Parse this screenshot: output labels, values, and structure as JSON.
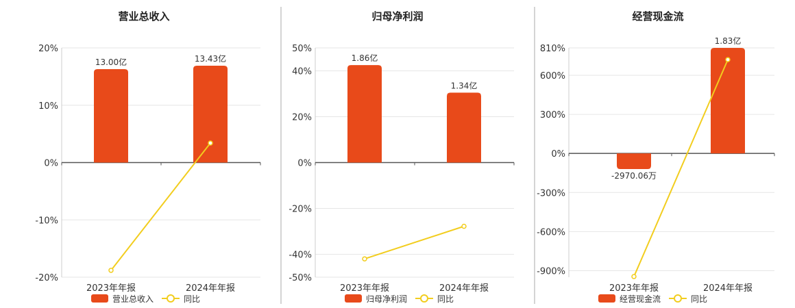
{
  "colors": {
    "bar": "#E84A1A",
    "line": "#F2CD1E",
    "grid": "#E6E6E6",
    "axis": "#555555",
    "divider": "#AAAAAA"
  },
  "chart_data": [
    {
      "type": "bar",
      "title": "营业总收入",
      "categories": [
        "2023年年报",
        "2024年年报"
      ],
      "ylim": [
        -20,
        20
      ],
      "yticks": [
        20,
        10,
        0,
        -10,
        -20
      ],
      "ytick_labels": [
        "20%",
        "10%",
        "0%",
        "-10%",
        "-20%"
      ],
      "series": [
        {
          "name": "营业总收入",
          "kind": "bar",
          "values": [
            16.3,
            16.9
          ],
          "labels": [
            "13.00亿",
            "13.43亿"
          ]
        },
        {
          "name": "同比",
          "kind": "line",
          "values": [
            -18.8,
            3.4
          ]
        }
      ],
      "legend": "bottom"
    },
    {
      "type": "bar",
      "title": "归母净利润",
      "categories": [
        "2023年年报",
        "2024年年报"
      ],
      "ylim": [
        -50,
        50
      ],
      "yticks": [
        50,
        40,
        20,
        0,
        -20,
        -40,
        -50
      ],
      "ytick_labels": [
        "50%",
        "40%",
        "20%",
        "0%",
        "-20%",
        "-40%",
        "-50%"
      ],
      "series": [
        {
          "name": "归母净利润",
          "kind": "bar",
          "values": [
            42.5,
            30.5
          ],
          "labels": [
            "1.86亿",
            "1.34亿"
          ]
        },
        {
          "name": "同比",
          "kind": "line",
          "values": [
            -42.0,
            -27.8
          ]
        }
      ],
      "legend": "bottom"
    },
    {
      "type": "bar",
      "title": "经营现金流",
      "categories": [
        "2023年年报",
        "2024年年报"
      ],
      "ylim": [
        -950,
        810
      ],
      "yticks": [
        810,
        600,
        300,
        0,
        -300,
        -600,
        -900
      ],
      "ytick_labels": [
        "810%",
        "600%",
        "300%",
        "0%",
        "-300%",
        "-600%",
        "-900%"
      ],
      "series": [
        {
          "name": "经营现金流",
          "kind": "bar",
          "values": [
            -120,
            810
          ],
          "labels": [
            "-2970.06万",
            "1.83亿"
          ]
        },
        {
          "name": "同比",
          "kind": "line",
          "values": [
            -945,
            720
          ]
        }
      ],
      "legend": "bottom"
    }
  ]
}
